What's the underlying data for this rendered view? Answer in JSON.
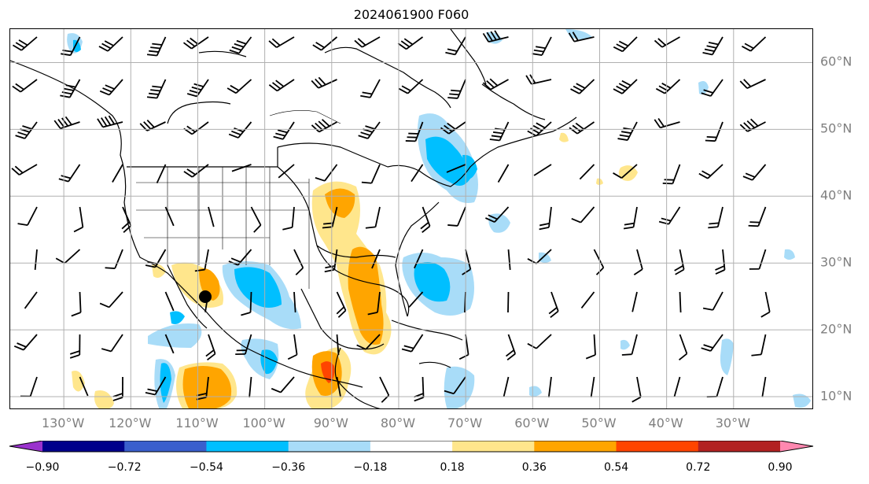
{
  "title": "2024061900 F060",
  "map": {
    "lon_range": [
      -138,
      -18
    ],
    "lat_range": [
      8,
      65
    ],
    "grid": true,
    "lon_labels": [
      "130°W",
      "120°W",
      "110°W",
      "100°W",
      "90°W",
      "80°W",
      "70°W",
      "60°W",
      "50°W",
      "40°W",
      "30°W"
    ],
    "lon_values": [
      -130,
      -120,
      -110,
      -100,
      -90,
      -80,
      -70,
      -60,
      -50,
      -40,
      -30
    ],
    "lat_labels": [
      "10°N",
      "20°N",
      "30°N",
      "40°N",
      "50°N",
      "60°N"
    ],
    "lat_values": [
      10,
      20,
      30,
      40,
      50,
      60
    ]
  },
  "colorbar": {
    "levels": [
      -0.9,
      -0.72,
      -0.54,
      -0.36,
      -0.18,
      0.18,
      0.36,
      0.54,
      0.72,
      0.9
    ],
    "tick_labels": [
      "−0.90",
      "−0.72",
      "−0.54",
      "−0.36",
      "−0.18",
      "0.18",
      "0.36",
      "0.54",
      "0.72",
      "0.90"
    ],
    "colors": [
      "#9a32cd",
      "#00008b",
      "#3a5fcd",
      "#00bfff",
      "#a8dcf8",
      "#ffffff",
      "#ffe68c",
      "#ffa500",
      "#ff4500",
      "#b22222",
      "#ff88b0"
    ],
    "extend": "both"
  },
  "field": {
    "positive_colors": {
      "0.18": "#ffe68c",
      "0.36": "#ffa500",
      "0.54": "#ff4500"
    },
    "negative_colors": {
      "-0.18": "#a8dcf8",
      "-0.36": "#00bfff"
    }
  }
}
